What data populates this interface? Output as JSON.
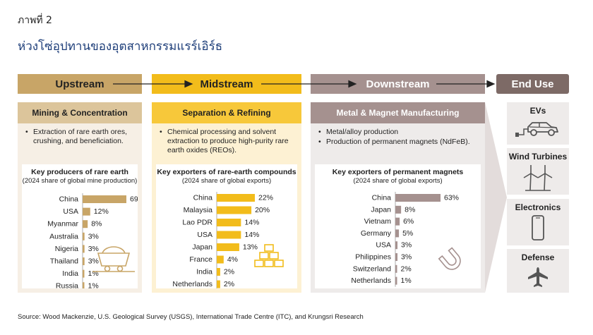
{
  "figure_label": "ภาพที่ 2",
  "figure_title": "ห่วงโซ่อุปทานของอุตสาหกรรมแรร์เอิร์ธ",
  "stages": {
    "upstream": "Upstream",
    "midstream": "Midstream",
    "downstream": "Downstream",
    "end_use": "End Use"
  },
  "panels": {
    "upstream": {
      "heading": "Mining & Concentration",
      "bullets": [
        "Extraction of rare earth ores, crushing, and beneficiation."
      ]
    },
    "midstream": {
      "heading": "Separation & Refining",
      "bullets": [
        "Chemical processing and solvent extraction to produce high-purity rare earth oxides (REOs)."
      ]
    },
    "downstream": {
      "heading": "Metal & Magnet Manufacturing",
      "bullets": [
        "Metal/alloy production",
        "Production of permanent magnets (NdFeB)."
      ]
    }
  },
  "end_uses": [
    {
      "label": "EVs",
      "icon": "car-icon"
    },
    {
      "label": "Wind Turbines",
      "icon": "wind-turbine-icon"
    },
    {
      "label": "Electronics",
      "icon": "smartphone-icon"
    },
    {
      "label": "Defense",
      "icon": "airplane-icon"
    }
  ],
  "colors": {
    "upstream_bar": "#c8a567",
    "midstream_bar": "#f2bc1b",
    "downstream_bar": "#a5918f",
    "title_blue": "#1f3f7a"
  },
  "chart_data": [
    {
      "type": "bar",
      "orientation": "horizontal",
      "title": "Key producers of rare earth",
      "subtitle": "(2024 share of global mine production)",
      "categories": [
        "China",
        "USA",
        "Myanmar",
        "Australia",
        "Nigeria",
        "Thailand",
        "India",
        "Russia"
      ],
      "values": [
        69,
        12,
        8,
        3,
        3,
        3,
        1,
        1
      ],
      "labels": [
        "69%",
        "12%",
        "8%",
        "3%",
        "3%",
        "3%",
        "1%",
        "1%"
      ],
      "unit": "%",
      "icon": "mine-cart-icon"
    },
    {
      "type": "bar",
      "orientation": "horizontal",
      "title": "Key exporters of rare-earth compounds",
      "subtitle": "(2024 share of global exports)",
      "categories": [
        "China",
        "Malaysia",
        "Lao PDR",
        "USA",
        "Japan",
        "France",
        "India",
        "Netherlands"
      ],
      "values": [
        22,
        20,
        14,
        14,
        13,
        4,
        2,
        2
      ],
      "labels": [
        "22%",
        "20%",
        "14%",
        "14%",
        "13%",
        "4%",
        "2%",
        "2%"
      ],
      "unit": "%",
      "icon": "stacked-bars-icon"
    },
    {
      "type": "bar",
      "orientation": "horizontal",
      "title": "Key exporters of permanent magnets",
      "subtitle": "(2024 share of global exports)",
      "categories": [
        "China",
        "Japan",
        "Vietnam",
        "Germany",
        "USA",
        "Philippines",
        "Switzerland",
        "Netherlands"
      ],
      "values": [
        63,
        8,
        6,
        5,
        3,
        3,
        2,
        1
      ],
      "labels": [
        "63%",
        "8%",
        "6%",
        "5%",
        "3%",
        "3%",
        "2%",
        "1%"
      ],
      "unit": "%",
      "icon": "magnet-icon"
    }
  ],
  "source": "Source: Wood Mackenzie, U.S. Geological Survey (USGS), International Trade Centre (ITC), and Krungsri Research"
}
